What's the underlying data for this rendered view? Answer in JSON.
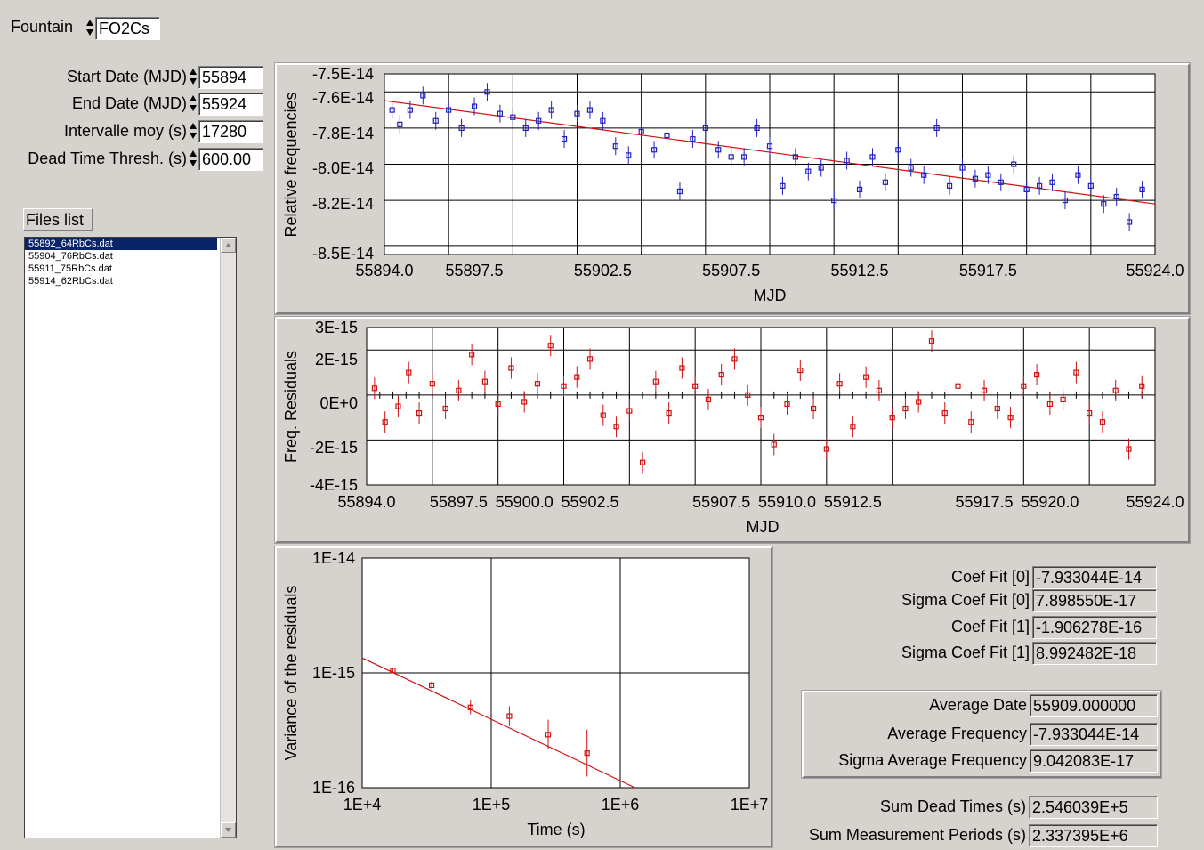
{
  "fountain": {
    "label": "Fountain",
    "value": "FO2Cs"
  },
  "params": [
    {
      "label": "Start Date (MJD)",
      "value": "55894"
    },
    {
      "label": "End Date (MJD)",
      "value": "55924"
    },
    {
      "label": "Intervalle moy (s)",
      "value": "17280"
    },
    {
      "label": "Dead Time Thresh. (s)",
      "value": "600.00"
    }
  ],
  "files": {
    "title": "Files list",
    "items": [
      "55892_64RbCs.dat",
      "55904_76RbCs.dat",
      "55911_75RbCs.dat",
      "55914_62RbCs.dat"
    ],
    "selected_index": 0
  },
  "results": {
    "fit": [
      {
        "label": "Coef Fit [0]",
        "value": "-7.933044E-14"
      },
      {
        "label": "Sigma Coef Fit [0]",
        "value": "7.898550E-17"
      },
      {
        "label": "Coef Fit [1]",
        "value": "-1.906278E-16"
      },
      {
        "label": "Sigma Coef Fit [1]",
        "value": "8.992482E-18"
      }
    ],
    "average": [
      {
        "label": "Average Date",
        "value": "55909.000000"
      },
      {
        "label": "Average Frequency",
        "value": "-7.933044E-14"
      },
      {
        "label": "Sigma Average Frequency",
        "value": "9.042083E-17"
      }
    ],
    "sums": [
      {
        "label": "Sum Dead Times (s)",
        "value": "2.546039E+5"
      },
      {
        "label": "Sum Measurement Periods (s)",
        "value": "2.337395E+6"
      }
    ]
  },
  "colors": {
    "blue_points": "#2020c0",
    "red_points": "#d01010",
    "fit_line": "#d01010"
  },
  "chart_data": [
    {
      "type": "scatter",
      "title": "",
      "xlabel": "MJD",
      "ylabel": "Relative frequencies",
      "xlim": [
        55894.0,
        55924.0
      ],
      "ylim": [
        -8.5e-14,
        -7.5e-14
      ],
      "x_ticks": [
        "55894.0",
        "55897.5",
        "55902.5",
        "55907.5",
        "55912.5",
        "55917.5",
        "55924.0"
      ],
      "y_ticks": [
        "-7.5E-14",
        "-7.6E-14",
        "-7.8E-14",
        "-8.0E-14",
        "-8.2E-14",
        "-8.5E-14"
      ],
      "fit_line": {
        "x": [
          55894.0,
          55924.0
        ],
        "y": [
          -7.648e-14,
          -8.22e-14
        ]
      },
      "x": [
        55894.3,
        55894.6,
        55895.0,
        55895.5,
        55896.0,
        55896.5,
        55897.0,
        55897.5,
        55898.0,
        55898.5,
        55899.0,
        55899.5,
        55900.0,
        55900.5,
        55901.0,
        55901.5,
        55902.0,
        55902.5,
        55903.0,
        55903.5,
        55904.0,
        55904.5,
        55905.0,
        55905.5,
        55906.0,
        55906.5,
        55907.0,
        55907.5,
        55908.0,
        55908.5,
        55909.0,
        55909.5,
        55910.0,
        55910.5,
        55911.0,
        55911.5,
        55912.0,
        55912.5,
        55913.0,
        55913.5,
        55914.0,
        55914.5,
        55915.0,
        55915.5,
        55916.0,
        55916.5,
        55917.0,
        55917.5,
        55918.0,
        55918.5,
        55919.0,
        55919.5,
        55920.0,
        55920.5,
        55921.0,
        55921.5,
        55922.0,
        55922.5,
        55923.0,
        55923.5
      ],
      "y": [
        -7.7e-14,
        -7.78e-14,
        -7.7e-14,
        -7.62e-14,
        -7.76e-14,
        -7.7e-14,
        -7.8e-14,
        -7.68e-14,
        -7.6e-14,
        -7.72e-14,
        -7.74e-14,
        -7.8e-14,
        -7.76e-14,
        -7.7e-14,
        -7.86e-14,
        -7.72e-14,
        -7.7e-14,
        -7.76e-14,
        -7.9e-14,
        -7.95e-14,
        -7.82e-14,
        -7.92e-14,
        -7.84e-14,
        -8.15e-14,
        -7.86e-14,
        -7.8e-14,
        -7.92e-14,
        -7.96e-14,
        -7.96e-14,
        -7.8e-14,
        -7.9e-14,
        -8.12e-14,
        -7.96e-14,
        -8.04e-14,
        -8.02e-14,
        -8.2e-14,
        -7.98e-14,
        -8.14e-14,
        -7.96e-14,
        -8.1e-14,
        -7.92e-14,
        -8.02e-14,
        -8.06e-14,
        -7.8e-14,
        -8.12e-14,
        -8.02e-14,
        -8.08e-14,
        -8.06e-14,
        -8.1e-14,
        -8e-14,
        -8.14e-14,
        -8.12e-14,
        -8.1e-14,
        -8.2e-14,
        -8.06e-14,
        -8.12e-14,
        -8.22e-14,
        -8.18e-14,
        -8.32e-14,
        -8.14e-14
      ]
    },
    {
      "type": "scatter",
      "title": "",
      "xlabel": "MJD",
      "ylabel": "Freq. Residuals",
      "xlim": [
        55894.0,
        55924.0
      ],
      "ylim": [
        -4e-15,
        3e-15
      ],
      "x_ticks": [
        "55894.0",
        "55897.5",
        "55900.0",
        "55902.5",
        "55907.5",
        "55910.0",
        "55912.5",
        "55917.5",
        "55920.0",
        "55924.0"
      ],
      "y_ticks": [
        "3E-15",
        "2E-15",
        "0E+0",
        "-2E-15",
        "-4E-15"
      ],
      "x": [
        55894.3,
        55894.7,
        55895.2,
        55895.6,
        55896.0,
        55896.5,
        55897.0,
        55897.5,
        55898.0,
        55898.5,
        55899.0,
        55899.5,
        55900.0,
        55900.5,
        55901.0,
        55901.5,
        55902.0,
        55902.5,
        55903.0,
        55903.5,
        55904.0,
        55904.5,
        55905.0,
        55905.5,
        55906.0,
        55906.5,
        55907.0,
        55907.5,
        55908.0,
        55908.5,
        55909.0,
        55909.5,
        55910.0,
        55910.5,
        55911.0,
        55911.5,
        55912.0,
        55912.5,
        55913.0,
        55913.5,
        55914.0,
        55914.5,
        55915.0,
        55915.5,
        55916.0,
        55916.5,
        55917.0,
        55917.5,
        55918.0,
        55918.5,
        55919.0,
        55919.5,
        55920.0,
        55920.5,
        55921.0,
        55921.5,
        55922.0,
        55922.5,
        55923.0,
        55923.5
      ],
      "y": [
        3e-16,
        -1.2e-15,
        -5e-16,
        1e-15,
        -8e-16,
        5e-16,
        -6e-16,
        2e-16,
        1.8e-15,
        6e-16,
        -4e-16,
        1.2e-15,
        -3e-16,
        5e-16,
        2.2e-15,
        4e-16,
        8e-16,
        1.6e-15,
        -9e-16,
        -1.4e-15,
        -7e-16,
        -3e-15,
        6e-16,
        -8e-16,
        1.2e-15,
        4e-16,
        -2e-16,
        9e-16,
        1.6e-15,
        0.0,
        -1e-15,
        -2.2e-15,
        -4e-16,
        1.1e-15,
        -6e-16,
        -2.4e-15,
        5e-16,
        -1.4e-15,
        8e-16,
        2e-16,
        -1e-15,
        -6e-16,
        -3e-16,
        2.4e-15,
        -8e-16,
        4e-16,
        -1.2e-15,
        2e-16,
        -6e-16,
        -1e-15,
        4e-16,
        9e-16,
        -4e-16,
        -2e-16,
        1e-15,
        -8e-16,
        -1.2e-15,
        2e-16,
        -2.4e-15,
        4e-16
      ]
    },
    {
      "type": "scatter",
      "title": "",
      "xlabel": "Time (s)",
      "ylabel": "Variance of the residuals",
      "x_scale": "log",
      "y_scale": "log",
      "xlim": [
        10000.0,
        10000000.0
      ],
      "ylim": [
        1e-16,
        1e-14
      ],
      "x_ticks": [
        "1E+4",
        "1E+5",
        "1E+6",
        "1E+7"
      ],
      "y_ticks": [
        "1E-14",
        "1E-15",
        "1E-16"
      ],
      "fit_line": {
        "x": [
          10000.0,
          1300000.0
        ],
        "y": [
          1.35e-15,
          1e-16
        ]
      },
      "x": [
        17280,
        34560,
        69120,
        138240,
        276480,
        552960
      ],
      "y": [
        1.05e-15,
        7.8e-16,
        5e-16,
        4.2e-16,
        2.9e-16,
        2e-16
      ],
      "yerr_factor": [
        1.05,
        1.08,
        1.15,
        1.22,
        1.35,
        1.6
      ]
    }
  ]
}
